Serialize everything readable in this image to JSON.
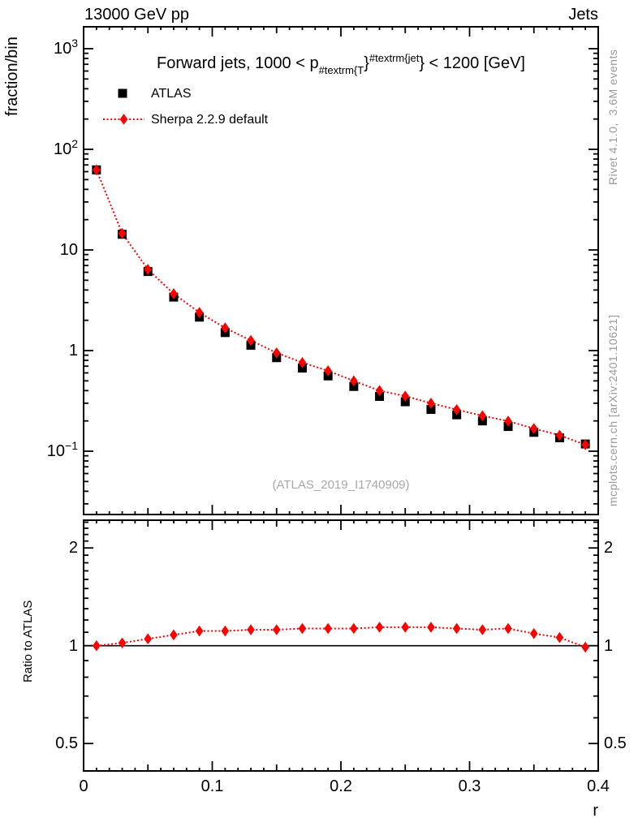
{
  "header": {
    "left_title": "13000 GeV pp",
    "right_title": "Jets"
  },
  "side_notes": {
    "rivet": "Rivet 4.1.0,  3.6M events",
    "mcplots": "mcplots.cern.ch [arXiv:2401.10621]",
    "color": "#999999"
  },
  "watermark": {
    "text": "(ATLAS_2019_I1740909)",
    "color": "#a8a8a8"
  },
  "colors": {
    "accent_red": "#ff0000",
    "frame_black": "#000000",
    "note_gray": "#999999"
  },
  "chart_data": {
    "type": "scatter",
    "title_parts": [
      {
        "text": "Forward jets, 1000 < p",
        "style": "normal"
      },
      {
        "text": "#textrm{T",
        "style": "sub"
      },
      {
        "text": "}",
        "style": "normal"
      },
      {
        "text": "#textrm{jet",
        "style": "sup"
      },
      {
        "text": "}",
        "style": "normal"
      },
      {
        "text": " < 1200 [GeV]",
        "style": "normal"
      }
    ],
    "xlabel": "r",
    "ylabel": "fraction/bin",
    "ratio_label": "Ratio to ATLAS",
    "x": [
      0.01,
      0.03,
      0.05,
      0.07,
      0.09,
      0.11,
      0.13,
      0.15,
      0.17,
      0.19,
      0.21,
      0.23,
      0.25,
      0.27,
      0.29,
      0.31,
      0.33,
      0.35,
      0.37,
      0.39
    ],
    "bin_width": 0.02,
    "series": [
      {
        "name": "ATLAS",
        "color": "#000000",
        "marker": "square",
        "line": "none",
        "values": [
          62.5,
          14.3,
          6.1,
          3.4,
          2.15,
          1.51,
          1.13,
          0.85,
          0.67,
          0.56,
          0.44,
          0.35,
          0.31,
          0.26,
          0.23,
          0.2,
          0.176,
          0.154,
          0.136,
          0.118
        ]
      },
      {
        "name": "Sherpa 2.2.9 default",
        "color": "#ff0000",
        "marker": "diamond",
        "line": "dotted",
        "values": [
          62.5,
          14.6,
          6.4,
          3.67,
          2.39,
          1.68,
          1.26,
          0.95,
          0.76,
          0.63,
          0.5,
          0.4,
          0.353,
          0.3,
          0.259,
          0.225,
          0.199,
          0.168,
          0.144,
          0.116
        ]
      }
    ],
    "ratio": {
      "series": "Sherpa 2.2.9 default",
      "reference": "ATLAS",
      "baseline": 1,
      "values": [
        1.0,
        1.02,
        1.05,
        1.08,
        1.11,
        1.11,
        1.12,
        1.12,
        1.13,
        1.13,
        1.13,
        1.14,
        1.14,
        1.14,
        1.13,
        1.12,
        1.13,
        1.09,
        1.06,
        0.99
      ]
    },
    "axes": {
      "x": {
        "min": 0,
        "max": 0.4,
        "minor_step": 0.01,
        "medium_step": 0.05,
        "ticks": [
          {
            "value": 0,
            "label": "0"
          },
          {
            "value": 0.1,
            "label": "0.1"
          },
          {
            "value": 0.2,
            "label": "0.2"
          },
          {
            "value": 0.3,
            "label": "0.3"
          },
          {
            "value": 0.4,
            "label": "0.4"
          }
        ]
      },
      "y_main": {
        "scale": "log",
        "min": 0.0235,
        "max": 1650,
        "ticks": [
          {
            "value": 1000,
            "text": "10",
            "exp": "3"
          },
          {
            "value": 100,
            "text": "10",
            "exp": "2"
          },
          {
            "value": 10,
            "text": "10",
            "exp": ""
          },
          {
            "value": 1,
            "text": "1",
            "exp": ""
          },
          {
            "value": 0.1,
            "text": "10",
            "exp": "−1"
          }
        ]
      },
      "y_ratio": {
        "scale": "log",
        "min": 0.41,
        "max": 2.44,
        "ticks": [
          {
            "value": 2,
            "label": "2"
          },
          {
            "value": 1,
            "label": "1"
          },
          {
            "value": 0.5,
            "label": "0.5"
          }
        ]
      }
    },
    "legend": {
      "items": [
        "ATLAS",
        "Sherpa 2.2.9 default"
      ]
    }
  }
}
